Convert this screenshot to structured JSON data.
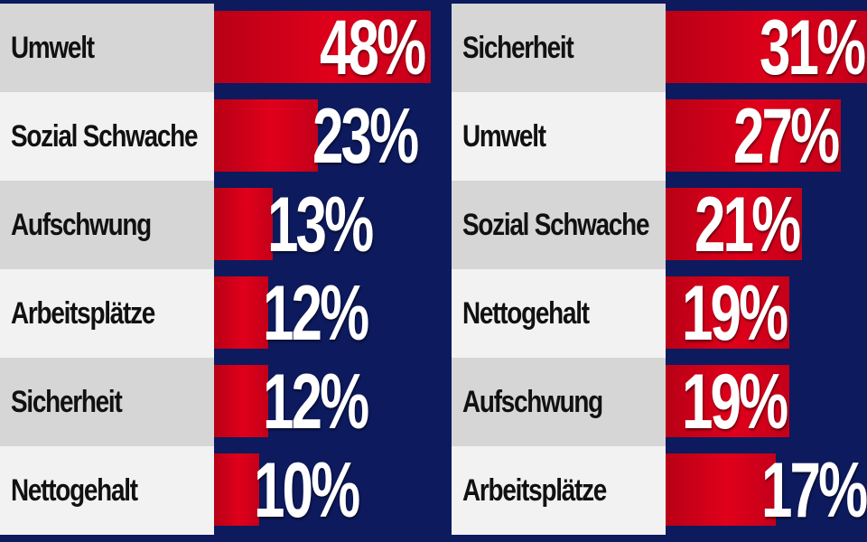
{
  "chart_data": [
    {
      "type": "bar",
      "orientation": "horizontal",
      "categories": [
        "Umwelt",
        "Sozial Schwache",
        "Aufschwung",
        "Arbeitsplätze",
        "Sicherheit",
        "Nettogehalt"
      ],
      "values": [
        48,
        23,
        13,
        12,
        12,
        10
      ],
      "value_labels": [
        "48%",
        "23%",
        "13%",
        "12%",
        "12%",
        "10%"
      ],
      "xlim": [
        0,
        48
      ]
    },
    {
      "type": "bar",
      "orientation": "horizontal",
      "categories": [
        "Sicherheit",
        "Umwelt",
        "Sozial Schwache",
        "Nettogehalt",
        "Aufschwung",
        "Arbeitsplätze"
      ],
      "values": [
        31,
        27,
        21,
        19,
        19,
        17
      ],
      "value_labels": [
        "31%",
        "27%",
        "21%",
        "19%",
        "19%",
        "17%"
      ],
      "xlim": [
        0,
        31
      ]
    }
  ],
  "colors": {
    "background": "#0d1a5e",
    "bar": "#e0001b",
    "row_light": "#f2f2f2",
    "row_dark": "#d6d6d6",
    "label_text": "#111111",
    "value_text": "#ffffff"
  }
}
